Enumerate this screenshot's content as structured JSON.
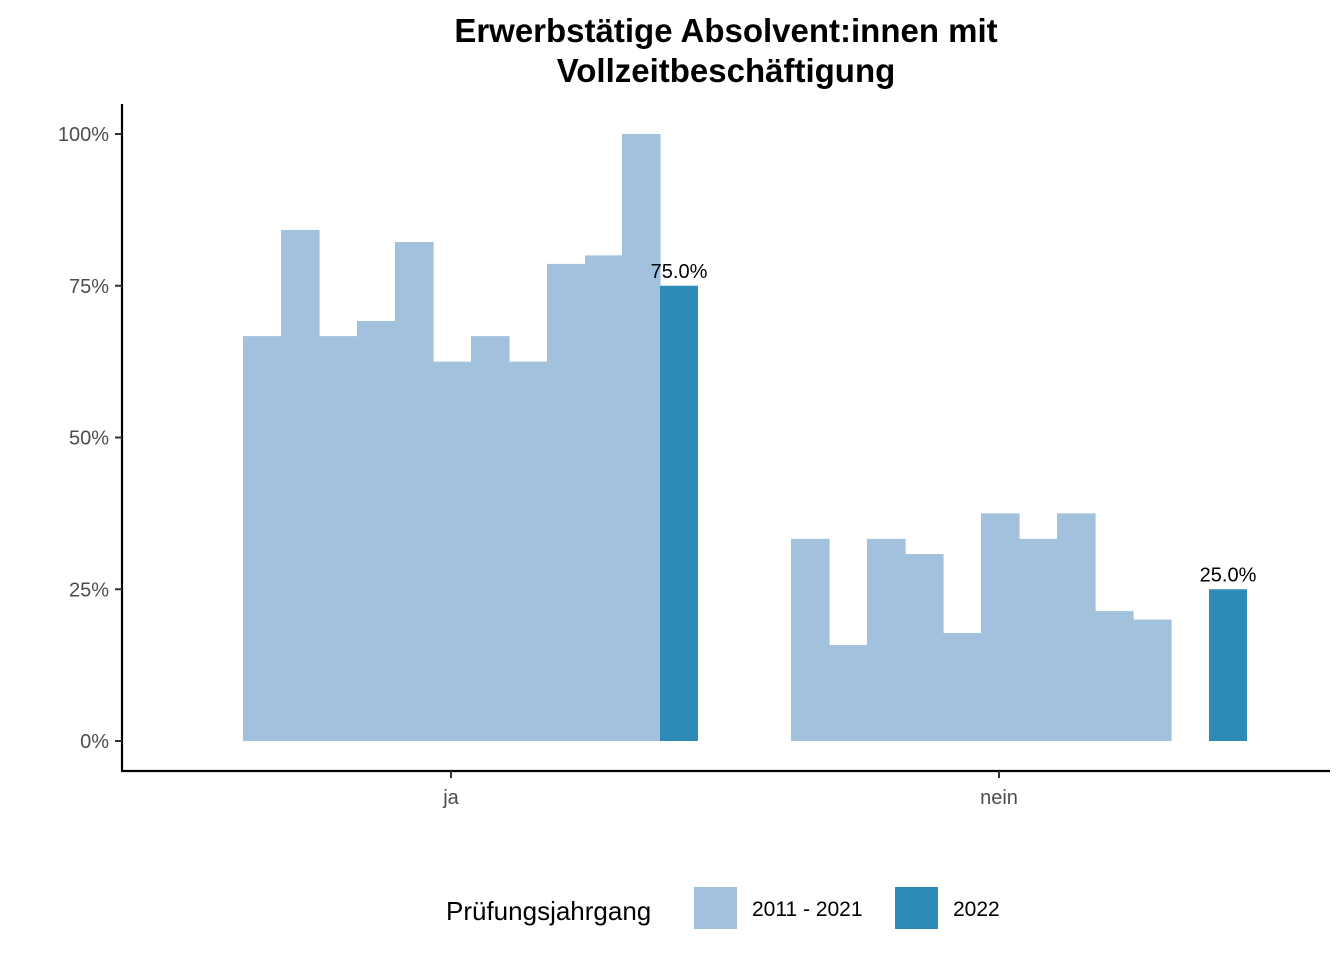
{
  "chart_data": {
    "type": "bar",
    "title_lines": [
      "Erwerbstätige Absolvent:innen mit",
      "Vollzeitbeschäftigung"
    ],
    "xlabel": "",
    "ylabel": "",
    "categories": [
      "ja",
      "nein"
    ],
    "ylim": [
      0,
      1
    ],
    "y_ticks": [
      {
        "value": 0,
        "label": "0%"
      },
      {
        "value": 0.25,
        "label": "25%"
      },
      {
        "value": 0.5,
        "label": "50%"
      },
      {
        "value": 0.75,
        "label": "75%"
      },
      {
        "value": 1.0,
        "label": "100%"
      }
    ],
    "grid": false,
    "legend_position": "bottom",
    "legend_title": "Prüfungsjahrgang",
    "series": [
      {
        "name": "2011 - 2021",
        "color": "#a1c1dd",
        "values_by_category": {
          "ja": [
            0.667,
            0.842,
            0.667,
            0.692,
            0.822,
            0.625,
            0.667,
            0.625,
            0.786,
            0.8,
            1.0
          ],
          "nein": [
            0.333,
            0.158,
            0.333,
            0.308,
            0.178,
            0.375,
            0.333,
            0.375,
            0.214,
            0.2
          ]
        }
      },
      {
        "name": "2022",
        "color": "#2e8bb8",
        "values_by_category": {
          "ja": [
            0.75
          ],
          "nein": [
            0.25
          ]
        },
        "data_labels": {
          "ja": "75.0%",
          "nein": "25.0%"
        }
      }
    ]
  }
}
